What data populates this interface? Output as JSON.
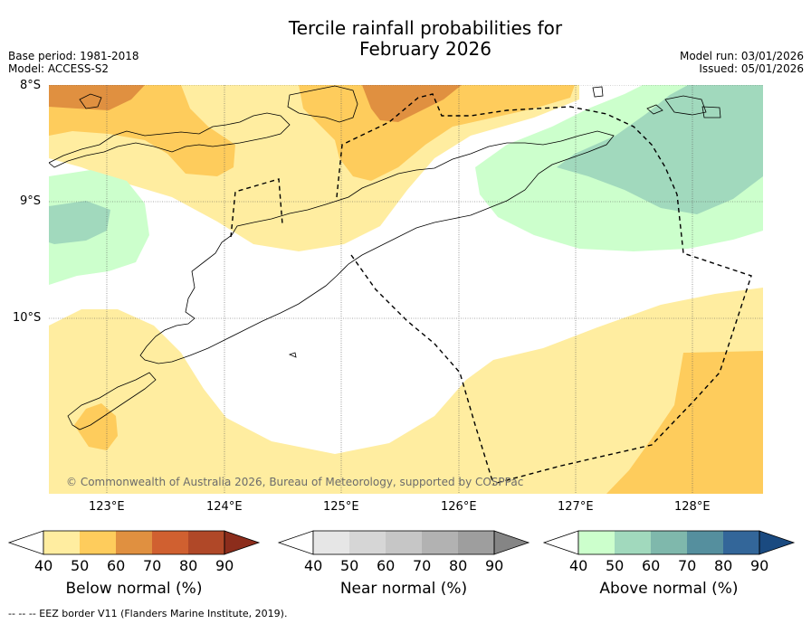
{
  "title_line1": "Tercile rainfall probabilities for",
  "title_line2": "February 2026",
  "base_period": "Base period: 1981-2018",
  "model": "Model: ACCESS-S2",
  "model_run": "Model run: 03/01/2026",
  "issued": "Issued: 05/01/2026",
  "lat_labels": [
    "8°S",
    "9°S",
    "10°S"
  ],
  "lon_labels": [
    "123°E",
    "124°E",
    "125°E",
    "126°E",
    "127°E",
    "128°E"
  ],
  "copyright": "© Commonwealth of Australia 2026, Bureau of Meteorology, supported by COSPPac",
  "colorbars": [
    {
      "title": "Below normal (%)",
      "ticks": [
        "40",
        "50",
        "60",
        "70",
        "80",
        "90"
      ],
      "colors": [
        "#ffffff",
        "#ffeda0",
        "#fecc5c",
        "#e09040",
        "#d06030",
        "#b04828",
        "#8c2d1c"
      ]
    },
    {
      "title": "Near normal (%)",
      "ticks": [
        "40",
        "50",
        "60",
        "70",
        "80",
        "90"
      ],
      "colors": [
        "#ffffff",
        "#e6e6e6",
        "#d6d6d6",
        "#c6c6c6",
        "#b2b2b2",
        "#9e9e9e",
        "#858585"
      ]
    },
    {
      "title": "Above normal (%)",
      "ticks": [
        "40",
        "50",
        "60",
        "70",
        "80",
        "90"
      ],
      "colors": [
        "#ffffff",
        "#ccffcc",
        "#a1d9bd",
        "#7fb8ac",
        "#558f9e",
        "#336699",
        "#1a4a80"
      ]
    }
  ],
  "footer": "--  --  -- EEZ border V11 (Flanders Marine Institute, 2019)."
}
